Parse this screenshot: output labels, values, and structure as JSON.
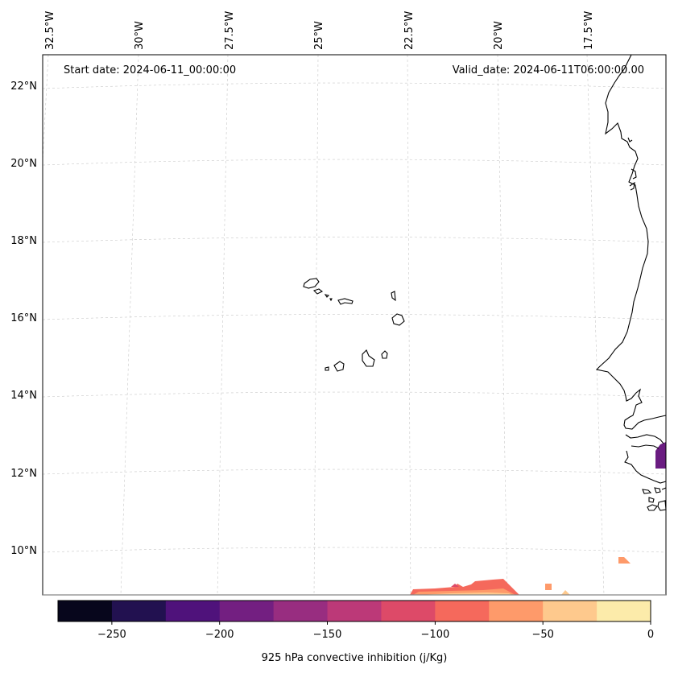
{
  "map": {
    "start_date_text": "Start date: 2024-06-11_00:00:00",
    "valid_date_text": "Valid_date: 2024-06-11T06:00:00.00",
    "lon_labels": [
      "32.5°W",
      "30°W",
      "27.5°W",
      "25°W",
      "22.5°W",
      "20°W",
      "17.5°W"
    ],
    "lat_labels": [
      "22°N",
      "20°N",
      "18°N",
      "16°N",
      "14°N",
      "12°N",
      "10°N"
    ],
    "field_colors": {
      "dark_purple": "#6a1c81",
      "salmon": "#f4695c",
      "orange": "#fe9f6d",
      "light_orange": "#fecf92",
      "red_pink": "#e05060"
    }
  },
  "colorbar": {
    "label": "925 hPa convective inhibition (j/Kg)",
    "tick_labels": [
      "−250",
      "−200",
      "−150",
      "−100",
      "−50",
      "0"
    ],
    "bins": [
      -275,
      -250,
      -225,
      -200,
      -175,
      -150,
      -125,
      -100,
      -75,
      -50,
      -25,
      0
    ],
    "colors": [
      "#07061c",
      "#221150",
      "#4f127b",
      "#731f81",
      "#982d80",
      "#bc3978",
      "#dd4a68",
      "#f5695c",
      "#fe9a6a",
      "#fec98d",
      "#fcebaa"
    ]
  }
}
